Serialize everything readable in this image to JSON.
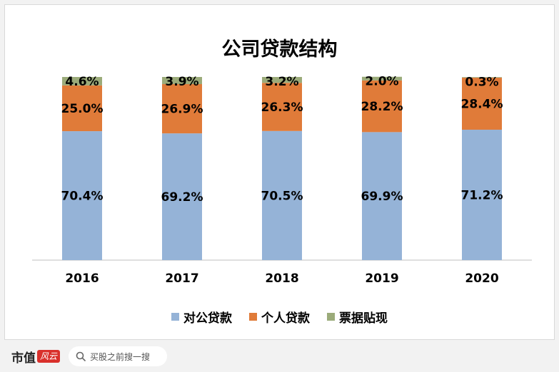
{
  "chart_data": {
    "type": "bar",
    "stacked": true,
    "title": "公司贷款结构",
    "categories": [
      "2016",
      "2017",
      "2018",
      "2019",
      "2020"
    ],
    "series": [
      {
        "name": "对公贷款",
        "color": "#95b3d7",
        "values": [
          70.4,
          69.2,
          70.5,
          69.9,
          71.2
        ],
        "labels": [
          "70.4%",
          "69.2%",
          "70.5%",
          "69.9%",
          "71.2%"
        ]
      },
      {
        "name": "个人贷款",
        "color": "#e07b39",
        "values": [
          25.0,
          26.9,
          26.3,
          28.2,
          28.4
        ],
        "labels": [
          "25.0%",
          "26.9%",
          "26.3%",
          "28.2%",
          "28.4%"
        ]
      },
      {
        "name": "票据贴现",
        "color": "#9bab7a",
        "values": [
          4.6,
          3.9,
          3.2,
          2.0,
          0.3
        ],
        "labels": [
          "4.6%",
          "3.9%",
          "3.2%",
          "2.0%",
          "0.3%"
        ]
      }
    ],
    "ylim": [
      0,
      100
    ],
    "grid": false,
    "legend_position": "bottom"
  },
  "watermark": "市值风云",
  "footer": {
    "brand": "市值",
    "brand_logo": "风云",
    "search_placeholder": "买股之前搜一搜",
    "search_icon": "search-icon"
  }
}
